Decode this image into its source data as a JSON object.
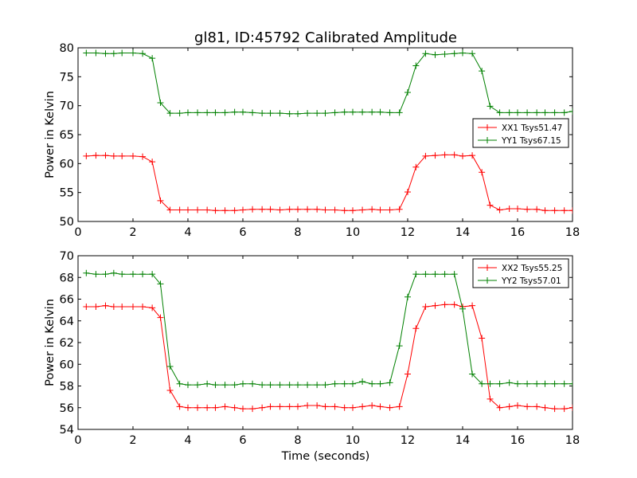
{
  "chart_data": {
    "title": "gl81, ID:45792 Calibrated Amplitude",
    "xlabel": "Time (seconds)",
    "colors": {
      "XX": "#ff0000",
      "YY": "#008000"
    },
    "x": [
      0.3,
      0.65,
      1.0,
      1.3,
      1.6,
      2.0,
      2.35,
      2.7,
      3.0,
      3.35,
      3.7,
      4.0,
      4.35,
      4.7,
      5.0,
      5.35,
      5.7,
      6.0,
      6.35,
      6.7,
      7.0,
      7.35,
      7.7,
      8.0,
      8.35,
      8.7,
      9.0,
      9.35,
      9.7,
      10.0,
      10.35,
      10.7,
      11.0,
      11.35,
      11.7,
      12.0,
      12.3,
      12.65,
      13.0,
      13.35,
      13.7,
      14.0,
      14.35,
      14.7,
      15.0,
      15.35,
      15.7,
      16.0,
      16.35,
      16.7,
      17.0,
      17.35,
      17.7,
      18.0
    ],
    "panels": [
      {
        "type": "line",
        "ylabel": "Power in Kelvin",
        "ylim": [
          50,
          80
        ],
        "yticks": [
          50,
          55,
          60,
          65,
          70,
          75,
          80
        ],
        "xlim": [
          0,
          18
        ],
        "xticks": [
          0,
          2,
          4,
          6,
          8,
          10,
          12,
          14,
          16,
          18
        ],
        "legend_position": "center-right",
        "series": [
          {
            "name": "XX1 Tsys51.47",
            "color_key": "XX",
            "values": [
              61.3,
              61.4,
              61.4,
              61.3,
              61.3,
              61.3,
              61.2,
              60.3,
              53.6,
              52.0,
              52.0,
              52.0,
              52.0,
              52.0,
              51.9,
              51.9,
              51.9,
              52.0,
              52.1,
              52.1,
              52.1,
              52.0,
              52.1,
              52.1,
              52.1,
              52.1,
              52.0,
              52.0,
              51.9,
              51.9,
              52.0,
              52.1,
              52.0,
              52.0,
              52.1,
              55.1,
              59.4,
              61.3,
              61.4,
              61.5,
              61.5,
              61.3,
              61.4,
              58.5,
              52.8,
              52.0,
              52.2,
              52.2,
              52.1,
              52.1,
              51.9,
              51.9,
              51.9,
              51.9
            ]
          },
          {
            "name": "YY1 Tsys67.15",
            "color_key": "YY",
            "values": [
              79.1,
              79.1,
              79.0,
              79.0,
              79.1,
              79.1,
              79.0,
              78.2,
              70.5,
              68.7,
              68.7,
              68.8,
              68.8,
              68.8,
              68.8,
              68.8,
              68.9,
              68.9,
              68.8,
              68.7,
              68.7,
              68.7,
              68.6,
              68.6,
              68.7,
              68.7,
              68.7,
              68.8,
              68.9,
              68.9,
              68.9,
              68.9,
              68.9,
              68.8,
              68.8,
              72.3,
              76.9,
              79.0,
              78.8,
              78.9,
              79.0,
              79.1,
              79.0,
              76.0,
              69.9,
              68.8,
              68.8,
              68.8,
              68.8,
              68.8,
              68.8,
              68.8,
              68.8,
              69.0
            ]
          }
        ]
      },
      {
        "type": "line",
        "ylabel": "Power in Kelvin",
        "ylim": [
          54,
          70
        ],
        "yticks": [
          54,
          56,
          58,
          60,
          62,
          64,
          66,
          68,
          70
        ],
        "xlim": [
          0,
          18
        ],
        "xticks": [
          0,
          2,
          4,
          6,
          8,
          10,
          12,
          14,
          16,
          18
        ],
        "legend_position": "top-right",
        "series": [
          {
            "name": "XX2 Tsys55.25",
            "color_key": "XX",
            "values": [
              65.3,
              65.3,
              65.4,
              65.3,
              65.3,
              65.3,
              65.3,
              65.2,
              64.3,
              57.6,
              56.1,
              56.0,
              56.0,
              56.0,
              56.0,
              56.1,
              56.0,
              55.9,
              55.9,
              56.0,
              56.1,
              56.1,
              56.1,
              56.1,
              56.2,
              56.2,
              56.1,
              56.1,
              56.0,
              56.0,
              56.1,
              56.2,
              56.1,
              56.0,
              56.1,
              59.1,
              63.3,
              65.3,
              65.4,
              65.5,
              65.5,
              65.3,
              65.4,
              62.4,
              56.8,
              56.0,
              56.1,
              56.2,
              56.1,
              56.1,
              56.0,
              55.9,
              55.9,
              56.0
            ]
          },
          {
            "name": "YY2 Tsys57.01",
            "color_key": "YY",
            "values": [
              68.4,
              68.3,
              68.3,
              68.4,
              68.3,
              68.3,
              68.3,
              68.3,
              67.4,
              59.8,
              58.2,
              58.1,
              58.1,
              58.2,
              58.1,
              58.1,
              58.1,
              58.2,
              58.2,
              58.1,
              58.1,
              58.1,
              58.1,
              58.1,
              58.1,
              58.1,
              58.1,
              58.2,
              58.2,
              58.2,
              58.4,
              58.2,
              58.2,
              58.3,
              61.7,
              66.2,
              68.3,
              68.3,
              68.3,
              68.3,
              68.3,
              65.1,
              59.1,
              58.2,
              58.2,
              58.2,
              58.3,
              58.2,
              58.2,
              58.2,
              58.2,
              58.2,
              58.2,
              58.2
            ]
          }
        ]
      }
    ]
  }
}
